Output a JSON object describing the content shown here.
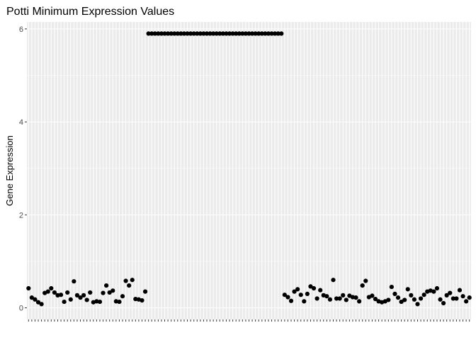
{
  "chart_data": {
    "type": "scatter",
    "title": "Potti Minimum Expression Values",
    "xlabel": "",
    "ylabel": "Gene Expression",
    "ylim": [
      -0.25,
      6.15
    ],
    "y_ticks": [
      0,
      2,
      4,
      6
    ],
    "grid": true,
    "legend": "none",
    "colors": {
      "panel": "#ebebeb",
      "grid": "#ffffff",
      "point": "#000000",
      "tick": "#4d4d4d"
    },
    "y": [
      0.42,
      0.22,
      0.18,
      0.12,
      0.08,
      0.32,
      0.35,
      0.42,
      0.33,
      0.27,
      0.28,
      0.13,
      0.33,
      0.18,
      0.57,
      0.27,
      0.22,
      0.27,
      0.17,
      0.33,
      0.12,
      0.14,
      0.13,
      0.32,
      0.48,
      0.33,
      0.37,
      0.14,
      0.13,
      0.25,
      0.58,
      0.48,
      0.6,
      0.19,
      0.18,
      0.16,
      0.35,
      5.9,
      5.9,
      5.9,
      5.9,
      5.9,
      5.9,
      5.9,
      5.9,
      5.9,
      5.9,
      5.9,
      5.9,
      5.9,
      5.9,
      5.9,
      5.9,
      5.9,
      5.9,
      5.9,
      5.9,
      5.9,
      5.9,
      5.9,
      5.9,
      5.9,
      5.9,
      5.9,
      5.9,
      5.9,
      5.9,
      5.9,
      5.9,
      5.9,
      5.9,
      5.9,
      5.9,
      5.9,
      5.9,
      5.9,
      5.9,
      5.9,
      5.9,
      0.28,
      0.23,
      0.15,
      0.35,
      0.4,
      0.28,
      0.14,
      0.3,
      0.46,
      0.42,
      0.2,
      0.38,
      0.27,
      0.25,
      0.18,
      0.6,
      0.2,
      0.2,
      0.27,
      0.17,
      0.26,
      0.23,
      0.22,
      0.14,
      0.48,
      0.58,
      0.23,
      0.26,
      0.19,
      0.14,
      0.12,
      0.14,
      0.17,
      0.45,
      0.3,
      0.22,
      0.13,
      0.17,
      0.4,
      0.27,
      0.18,
      0.08,
      0.2,
      0.28,
      0.35,
      0.37,
      0.35,
      0.42,
      0.18,
      0.1,
      0.27,
      0.32,
      0.2,
      0.2,
      0.38,
      0.25,
      0.14,
      0.22
    ]
  }
}
